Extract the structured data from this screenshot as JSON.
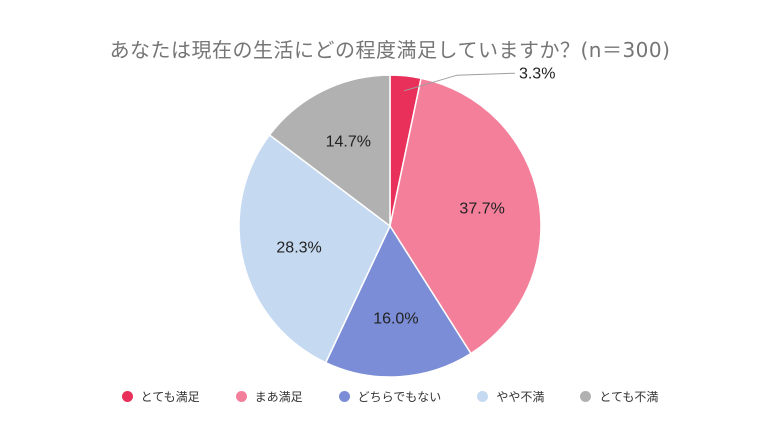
{
  "chart_data": {
    "type": "pie",
    "title": "あなたは現在の生活にどの程度満足していますか？(n＝300)",
    "slices": [
      {
        "label": "とても満足",
        "value": 3.3,
        "display": "3.3%",
        "color": "#e8305a"
      },
      {
        "label": "まあ満足",
        "value": 37.7,
        "display": "37.7%",
        "color": "#f37f9b"
      },
      {
        "label": "どちらでもない",
        "value": 16.0,
        "display": "16.0%",
        "color": "#7b8dd6"
      },
      {
        "label": "やや不満",
        "value": 28.3,
        "display": "28.3%",
        "color": "#c5d9f1"
      },
      {
        "label": "とても不満",
        "value": 14.7,
        "display": "14.7%",
        "color": "#b1b1b1"
      }
    ],
    "legend_position": "bottom",
    "start_angle": "12 o'clock",
    "direction": "clockwise"
  }
}
